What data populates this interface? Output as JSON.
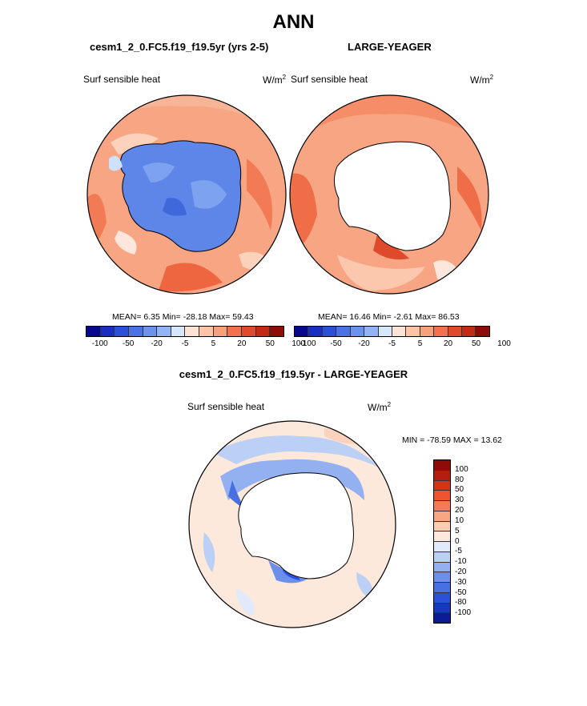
{
  "title": "ANN",
  "left_panel": {
    "title": "cesm1_2_0.FC5.f19_f19.5yr (yrs 2-5)",
    "variable": "Surf sensible heat",
    "units": "W/m",
    "units_sup": "2",
    "stats": "MEAN=  6.35  Min= -28.18  Max=  59.43"
  },
  "right_panel": {
    "title": "LARGE-YEAGER",
    "variable": "Surf sensible heat",
    "units": "W/m",
    "units_sup": "2",
    "stats": "MEAN=  16.46  Min=  -2.61  Max=  86.53"
  },
  "top_colorbar": {
    "colors": [
      "#08088c",
      "#1a2fbf",
      "#2b4fd8",
      "#4a72e6",
      "#6d92ee",
      "#93b3f4",
      "#d6e6fb",
      "#fde3d6",
      "#fcc3a6",
      "#f89f7b",
      "#f2704e",
      "#e04a2c",
      "#c22a14",
      "#8e0c07"
    ],
    "ticks": [
      "-100",
      "-50",
      "-20",
      "-5",
      "5",
      "20",
      "50",
      "100"
    ]
  },
  "difference_panel": {
    "title": "cesm1_2_0.FC5.f19_f19.5yr - LARGE-YEAGER",
    "variable": "Surf sensible heat",
    "units": "W/m",
    "units_sup": "2",
    "minmax": "MIN = -78.59 MAX =  13.62"
  },
  "diff_colorbar": {
    "colors": [
      "#8e0c07",
      "#b51d10",
      "#d8321a",
      "#ee5430",
      "#f67a55",
      "#f9a683",
      "#fccdb3",
      "#fde8dc",
      "#e0eafa",
      "#bcd0f6",
      "#93b1f1",
      "#6b8fea",
      "#4970e3",
      "#2c50d8",
      "#1a36c0",
      "#0d1b95"
    ],
    "ticks": [
      "100",
      "80",
      "50",
      "30",
      "20",
      "10",
      "5",
      "0",
      "-5",
      "-10",
      "-20",
      "-30",
      "-50",
      "-80",
      "-100"
    ]
  }
}
